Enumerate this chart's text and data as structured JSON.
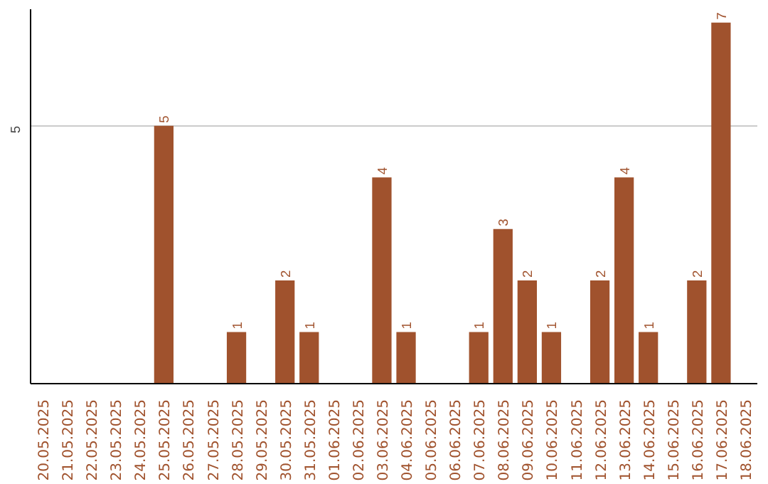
{
  "chart_data": {
    "type": "bar",
    "categories": [
      "20.05.2025",
      "21.05.2025",
      "22.05.2025",
      "23.05.2025",
      "24.05.2025",
      "25.05.2025",
      "26.05.2025",
      "27.05.2025",
      "28.05.2025",
      "29.05.2025",
      "30.05.2025",
      "31.05.2025",
      "01.06.2025",
      "02.06.2025",
      "03.06.2025",
      "04.06.2025",
      "05.06.2025",
      "06.06.2025",
      "07.06.2025",
      "08.06.2025",
      "09.06.2025",
      "10.06.2025",
      "11.06.2025",
      "12.06.2025",
      "13.06.2025",
      "14.06.2025",
      "15.06.2025",
      "16.06.2025",
      "17.06.2025",
      "18.06.2025"
    ],
    "values": [
      0,
      0,
      0,
      0,
      0,
      5,
      0,
      0,
      1,
      0,
      2,
      1,
      0,
      0,
      4,
      1,
      0,
      0,
      1,
      3,
      2,
      1,
      0,
      2,
      4,
      1,
      0,
      2,
      7,
      0
    ],
    "value_labels": [
      null,
      null,
      null,
      null,
      null,
      "5",
      null,
      null,
      "1",
      null,
      "2",
      "1",
      null,
      null,
      "4",
      "1",
      null,
      null,
      "1",
      "3",
      "2",
      "1",
      null,
      "2",
      "4",
      "1",
      null,
      "2",
      "7",
      null
    ],
    "color": "#a0522d",
    "ylim": [
      0,
      7.26
    ],
    "yticks": [
      5
    ],
    "grid": "y"
  }
}
